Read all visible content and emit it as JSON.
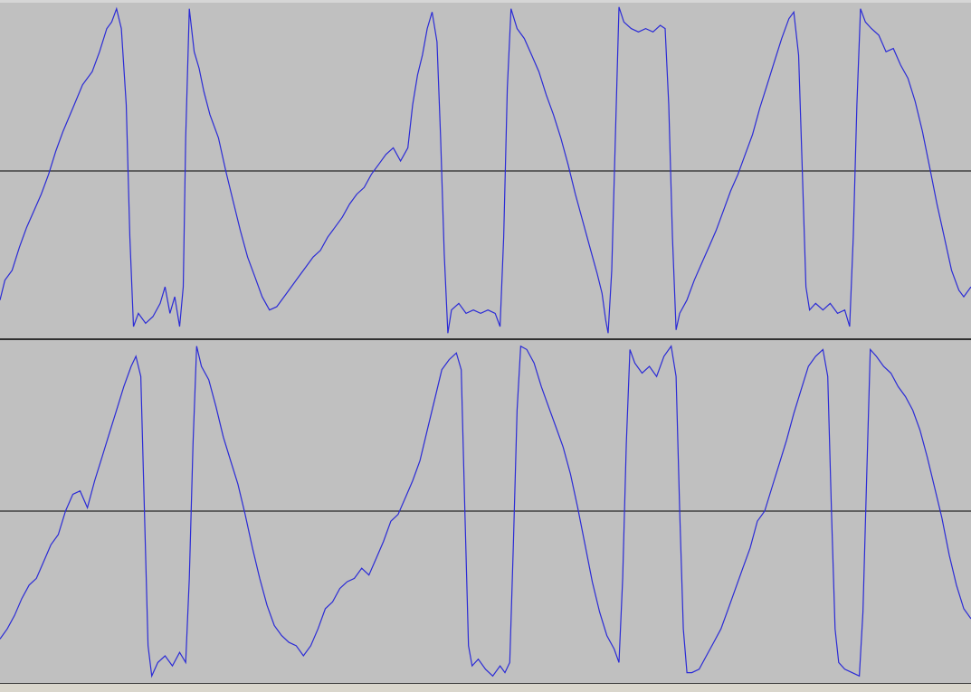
{
  "colors": {
    "background": "#c0c0c0",
    "waveform": "#2b2bd6",
    "axis": "#000000",
    "bottom_bar": "#d9d6cc"
  },
  "channels": [
    {
      "name": "",
      "samples": [
        [
          0.0,
          -0.78
        ],
        [
          0.4,
          -0.66
        ],
        [
          1.0,
          -0.6
        ],
        [
          1.6,
          -0.46
        ],
        [
          2.2,
          -0.34
        ],
        [
          2.8,
          -0.24
        ],
        [
          3.4,
          -0.14
        ],
        [
          4.0,
          -0.02
        ],
        [
          4.6,
          0.12
        ],
        [
          5.2,
          0.24
        ],
        [
          6.0,
          0.38
        ],
        [
          6.8,
          0.52
        ],
        [
          7.6,
          0.6
        ],
        [
          8.2,
          0.72
        ],
        [
          8.8,
          0.86
        ],
        [
          9.2,
          0.9
        ],
        [
          9.6,
          0.98
        ],
        [
          10.0,
          0.86
        ],
        [
          10.4,
          0.4
        ],
        [
          10.7,
          -0.4
        ],
        [
          11.0,
          -0.94
        ],
        [
          11.4,
          -0.86
        ],
        [
          12.0,
          -0.92
        ],
        [
          12.6,
          -0.88
        ],
        [
          13.2,
          -0.8
        ],
        [
          13.6,
          -0.7
        ],
        [
          14.0,
          -0.86
        ],
        [
          14.4,
          -0.76
        ],
        [
          14.8,
          -0.94
        ],
        [
          15.1,
          -0.7
        ],
        [
          15.3,
          0.2
        ],
        [
          15.6,
          0.98
        ],
        [
          16.0,
          0.72
        ],
        [
          16.4,
          0.62
        ],
        [
          16.8,
          0.48
        ],
        [
          17.3,
          0.34
        ],
        [
          18.0,
          0.2
        ],
        [
          18.6,
          0.0
        ],
        [
          19.2,
          -0.18
        ],
        [
          19.8,
          -0.36
        ],
        [
          20.4,
          -0.52
        ],
        [
          21.0,
          -0.64
        ],
        [
          21.6,
          -0.76
        ],
        [
          22.2,
          -0.84
        ],
        [
          22.8,
          -0.82
        ],
        [
          23.4,
          -0.76
        ],
        [
          24.0,
          -0.7
        ],
        [
          24.6,
          -0.64
        ],
        [
          25.2,
          -0.58
        ],
        [
          25.8,
          -0.52
        ],
        [
          26.4,
          -0.48
        ],
        [
          27.0,
          -0.4
        ],
        [
          27.6,
          -0.34
        ],
        [
          28.2,
          -0.28
        ],
        [
          28.8,
          -0.2
        ],
        [
          29.4,
          -0.14
        ],
        [
          30.0,
          -0.1
        ],
        [
          30.6,
          -0.02
        ],
        [
          31.2,
          0.04
        ],
        [
          31.8,
          0.1
        ],
        [
          32.4,
          0.14
        ],
        [
          33.0,
          0.06
        ],
        [
          33.6,
          0.14
        ],
        [
          34.0,
          0.4
        ],
        [
          34.4,
          0.58
        ],
        [
          34.8,
          0.7
        ],
        [
          35.2,
          0.86
        ],
        [
          35.6,
          0.96
        ],
        [
          36.0,
          0.78
        ],
        [
          36.3,
          0.2
        ],
        [
          36.6,
          -0.5
        ],
        [
          36.9,
          -0.98
        ],
        [
          37.2,
          -0.84
        ],
        [
          37.8,
          -0.8
        ],
        [
          38.4,
          -0.86
        ],
        [
          39.0,
          -0.84
        ],
        [
          39.6,
          -0.86
        ],
        [
          40.2,
          -0.84
        ],
        [
          40.8,
          -0.86
        ],
        [
          41.2,
          -0.94
        ],
        [
          41.5,
          -0.4
        ],
        [
          41.8,
          0.5
        ],
        [
          42.1,
          0.98
        ],
        [
          42.6,
          0.86
        ],
        [
          43.2,
          0.8
        ],
        [
          43.8,
          0.7
        ],
        [
          44.4,
          0.6
        ],
        [
          45.0,
          0.46
        ],
        [
          45.6,
          0.34
        ],
        [
          46.2,
          0.2
        ],
        [
          46.8,
          0.04
        ],
        [
          47.4,
          -0.14
        ],
        [
          48.0,
          -0.3
        ],
        [
          48.6,
          -0.46
        ],
        [
          49.2,
          -0.62
        ],
        [
          49.6,
          -0.74
        ],
        [
          49.9,
          -0.9
        ],
        [
          50.1,
          -0.98
        ],
        [
          50.4,
          -0.6
        ],
        [
          50.7,
          0.2
        ],
        [
          51.0,
          0.99
        ],
        [
          51.4,
          0.9
        ],
        [
          52.0,
          0.86
        ],
        [
          52.6,
          0.84
        ],
        [
          53.2,
          0.86
        ],
        [
          53.8,
          0.84
        ],
        [
          54.4,
          0.88
        ],
        [
          54.8,
          0.86
        ],
        [
          55.1,
          0.4
        ],
        [
          55.4,
          -0.4
        ],
        [
          55.7,
          -0.96
        ],
        [
          56.0,
          -0.86
        ],
        [
          56.6,
          -0.78
        ],
        [
          57.2,
          -0.66
        ],
        [
          57.8,
          -0.56
        ],
        [
          58.4,
          -0.46
        ],
        [
          59.0,
          -0.36
        ],
        [
          59.6,
          -0.24
        ],
        [
          60.2,
          -0.12
        ],
        [
          60.8,
          -0.02
        ],
        [
          61.4,
          0.1
        ],
        [
          62.0,
          0.22
        ],
        [
          62.6,
          0.38
        ],
        [
          63.2,
          0.52
        ],
        [
          63.8,
          0.66
        ],
        [
          64.4,
          0.8
        ],
        [
          65.0,
          0.92
        ],
        [
          65.4,
          0.96
        ],
        [
          65.8,
          0.7
        ],
        [
          66.1,
          0.0
        ],
        [
          66.4,
          -0.7
        ],
        [
          66.7,
          -0.84
        ],
        [
          67.2,
          -0.8
        ],
        [
          67.8,
          -0.84
        ],
        [
          68.4,
          -0.8
        ],
        [
          69.0,
          -0.86
        ],
        [
          69.6,
          -0.84
        ],
        [
          70.0,
          -0.94
        ],
        [
          70.3,
          -0.4
        ],
        [
          70.6,
          0.4
        ],
        [
          70.9,
          0.98
        ],
        [
          71.3,
          0.9
        ],
        [
          71.8,
          0.86
        ],
        [
          72.4,
          0.82
        ],
        [
          73.0,
          0.72
        ],
        [
          73.6,
          0.74
        ],
        [
          74.2,
          0.64
        ],
        [
          74.8,
          0.56
        ],
        [
          75.4,
          0.42
        ],
        [
          76.0,
          0.24
        ],
        [
          76.6,
          0.02
        ],
        [
          77.2,
          -0.2
        ],
        [
          77.8,
          -0.4
        ],
        [
          78.4,
          -0.6
        ],
        [
          79.0,
          -0.72
        ],
        [
          79.4,
          -0.76
        ],
        [
          80.0,
          -0.7
        ]
      ]
    },
    {
      "name": "",
      "samples": [
        [
          0.0,
          -0.76
        ],
        [
          0.6,
          -0.7
        ],
        [
          1.2,
          -0.62
        ],
        [
          1.8,
          -0.52
        ],
        [
          2.4,
          -0.44
        ],
        [
          3.0,
          -0.4
        ],
        [
          3.6,
          -0.3
        ],
        [
          4.2,
          -0.2
        ],
        [
          4.8,
          -0.14
        ],
        [
          5.4,
          0.0
        ],
        [
          6.0,
          0.1
        ],
        [
          6.6,
          0.12
        ],
        [
          7.2,
          0.02
        ],
        [
          7.8,
          0.18
        ],
        [
          8.4,
          0.32
        ],
        [
          9.0,
          0.46
        ],
        [
          9.6,
          0.6
        ],
        [
          10.2,
          0.74
        ],
        [
          10.8,
          0.86
        ],
        [
          11.2,
          0.92
        ],
        [
          11.6,
          0.8
        ],
        [
          11.9,
          0.0
        ],
        [
          12.2,
          -0.8
        ],
        [
          12.5,
          -0.98
        ],
        [
          13.0,
          -0.9
        ],
        [
          13.6,
          -0.86
        ],
        [
          14.2,
          -0.92
        ],
        [
          14.8,
          -0.84
        ],
        [
          15.3,
          -0.9
        ],
        [
          15.6,
          -0.4
        ],
        [
          15.9,
          0.4
        ],
        [
          16.2,
          0.98
        ],
        [
          16.6,
          0.86
        ],
        [
          17.2,
          0.78
        ],
        [
          17.8,
          0.62
        ],
        [
          18.4,
          0.44
        ],
        [
          19.0,
          0.3
        ],
        [
          19.6,
          0.16
        ],
        [
          20.2,
          -0.02
        ],
        [
          20.8,
          -0.22
        ],
        [
          21.4,
          -0.4
        ],
        [
          22.0,
          -0.56
        ],
        [
          22.6,
          -0.68
        ],
        [
          23.2,
          -0.74
        ],
        [
          23.8,
          -0.78
        ],
        [
          24.4,
          -0.8
        ],
        [
          25.0,
          -0.86
        ],
        [
          25.6,
          -0.8
        ],
        [
          26.2,
          -0.7
        ],
        [
          26.8,
          -0.58
        ],
        [
          27.4,
          -0.54
        ],
        [
          28.0,
          -0.46
        ],
        [
          28.6,
          -0.42
        ],
        [
          29.2,
          -0.4
        ],
        [
          29.8,
          -0.34
        ],
        [
          30.4,
          -0.38
        ],
        [
          31.0,
          -0.28
        ],
        [
          31.6,
          -0.18
        ],
        [
          32.2,
          -0.06
        ],
        [
          32.8,
          -0.02
        ],
        [
          33.4,
          0.08
        ],
        [
          34.0,
          0.18
        ],
        [
          34.6,
          0.3
        ],
        [
          35.2,
          0.48
        ],
        [
          35.8,
          0.66
        ],
        [
          36.4,
          0.84
        ],
        [
          37.0,
          0.9
        ],
        [
          37.6,
          0.94
        ],
        [
          38.0,
          0.84
        ],
        [
          38.3,
          0.0
        ],
        [
          38.6,
          -0.8
        ],
        [
          38.9,
          -0.92
        ],
        [
          39.4,
          -0.88
        ],
        [
          40.0,
          -0.94
        ],
        [
          40.6,
          -0.98
        ],
        [
          41.2,
          -0.92
        ],
        [
          41.6,
          -0.96
        ],
        [
          42.0,
          -0.9
        ],
        [
          42.3,
          -0.2
        ],
        [
          42.6,
          0.6
        ],
        [
          42.9,
          0.98
        ],
        [
          43.4,
          0.96
        ],
        [
          44.0,
          0.88
        ],
        [
          44.6,
          0.74
        ],
        [
          45.2,
          0.62
        ],
        [
          45.8,
          0.5
        ],
        [
          46.4,
          0.38
        ],
        [
          47.0,
          0.22
        ],
        [
          47.6,
          0.02
        ],
        [
          48.2,
          -0.2
        ],
        [
          48.8,
          -0.42
        ],
        [
          49.4,
          -0.6
        ],
        [
          50.0,
          -0.74
        ],
        [
          50.6,
          -0.82
        ],
        [
          51.0,
          -0.9
        ],
        [
          51.3,
          -0.4
        ],
        [
          51.6,
          0.4
        ],
        [
          51.9,
          0.96
        ],
        [
          52.3,
          0.88
        ],
        [
          52.9,
          0.82
        ],
        [
          53.5,
          0.86
        ],
        [
          54.1,
          0.8
        ],
        [
          54.7,
          0.92
        ],
        [
          55.3,
          0.98
        ],
        [
          55.7,
          0.8
        ],
        [
          56.0,
          0.0
        ],
        [
          56.3,
          -0.7
        ],
        [
          56.6,
          -0.96
        ],
        [
          57.0,
          -0.96
        ],
        [
          57.6,
          -0.94
        ],
        [
          58.2,
          -0.86
        ],
        [
          58.8,
          -0.78
        ],
        [
          59.4,
          -0.7
        ],
        [
          60.0,
          -0.58
        ],
        [
          60.6,
          -0.46
        ],
        [
          61.2,
          -0.34
        ],
        [
          61.8,
          -0.22
        ],
        [
          62.4,
          -0.06
        ],
        [
          63.0,
          0.0
        ],
        [
          63.6,
          0.14
        ],
        [
          64.2,
          0.28
        ],
        [
          64.8,
          0.42
        ],
        [
          65.4,
          0.58
        ],
        [
          66.0,
          0.72
        ],
        [
          66.6,
          0.86
        ],
        [
          67.2,
          0.92
        ],
        [
          67.8,
          0.96
        ],
        [
          68.2,
          0.8
        ],
        [
          68.5,
          0.0
        ],
        [
          68.8,
          -0.7
        ],
        [
          69.1,
          -0.9
        ],
        [
          69.6,
          -0.94
        ],
        [
          70.2,
          -0.96
        ],
        [
          70.8,
          -0.98
        ],
        [
          71.1,
          -0.6
        ],
        [
          71.4,
          0.2
        ],
        [
          71.7,
          0.96
        ],
        [
          72.2,
          0.92
        ],
        [
          72.8,
          0.86
        ],
        [
          73.4,
          0.82
        ],
        [
          74.0,
          0.74
        ],
        [
          74.6,
          0.68
        ],
        [
          75.2,
          0.6
        ],
        [
          75.8,
          0.48
        ],
        [
          76.4,
          0.32
        ],
        [
          77.0,
          0.14
        ],
        [
          77.6,
          -0.04
        ],
        [
          78.2,
          -0.26
        ],
        [
          78.8,
          -0.44
        ],
        [
          79.4,
          -0.58
        ],
        [
          80.0,
          -0.64
        ]
      ]
    }
  ]
}
